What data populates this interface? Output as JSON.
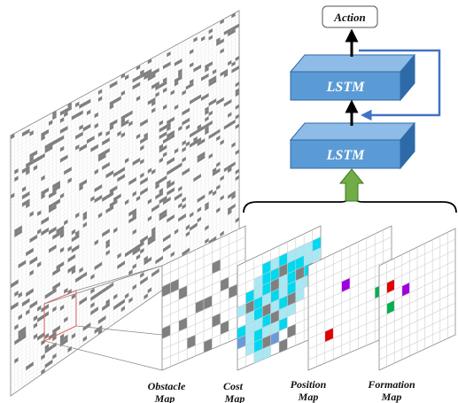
{
  "action": {
    "label": "Action"
  },
  "lstm": {
    "top_label": "LSTM",
    "bottom_label": "LSTM"
  },
  "maps": {
    "obstacle": {
      "line1": "Obstacle",
      "line2": "Map"
    },
    "cost": {
      "line1": "Cost",
      "line2": "Map"
    },
    "position": {
      "line1": "Position",
      "line2": "Map"
    },
    "formation": {
      "line1": "Formation",
      "line2": "Map"
    }
  },
  "colors": {
    "lstm_fill": "#5b9bd5",
    "lstm_top": "#8fbce6",
    "lstm_side": "#2e6aa8",
    "arrow_up": "#70ad47",
    "feedback": "#4472c4",
    "obstacle": "#808080",
    "cost_cyan": "#00d8f0",
    "cost_light": "#a8e8f4",
    "cost_blue": "#6a9ad8",
    "position_red": "#e00000",
    "position_purple": "#a000e0",
    "formation_green": "#00b050",
    "highlight": "#e06060"
  }
}
